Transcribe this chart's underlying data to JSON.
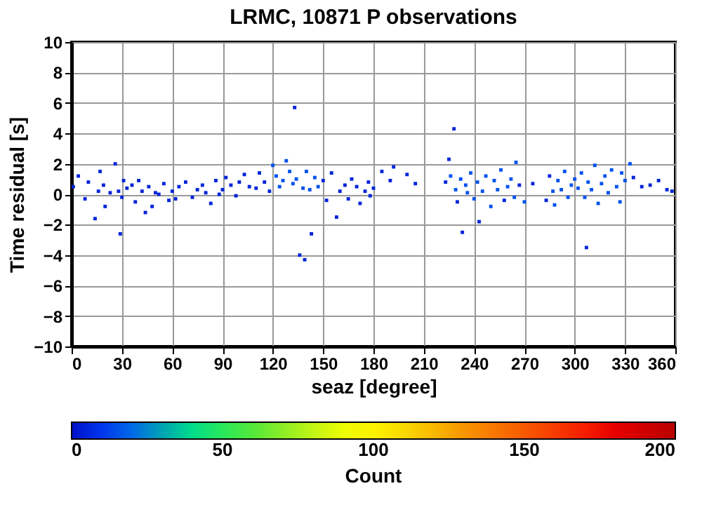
{
  "chart_data": {
    "type": "scatter",
    "title": "LRMC, 10871 P observations",
    "xlabel": "seaz [degree]",
    "ylabel": "Time residual [s]",
    "clabel": "Count",
    "clim": [
      0,
      200
    ],
    "cticks": [
      0,
      50,
      100,
      150,
      200
    ],
    "xlim": [
      0,
      360
    ],
    "ylim": [
      -10,
      10
    ],
    "xticks": [
      0,
      30,
      60,
      90,
      120,
      150,
      180,
      210,
      240,
      270,
      300,
      330,
      360
    ],
    "yticks": [
      -10,
      -8,
      -6,
      -4,
      -2,
      0,
      2,
      4,
      6,
      8,
      10
    ],
    "grid": true,
    "series": [
      {
        "x": [
          1,
          4,
          8,
          10,
          14,
          16,
          17,
          19,
          20,
          23,
          26,
          28,
          29,
          30,
          31,
          33,
          36,
          38,
          40,
          42,
          44,
          46,
          48,
          50,
          52,
          55,
          58,
          60,
          62,
          64,
          68,
          72,
          75,
          78,
          80,
          83,
          86,
          88,
          90,
          92,
          95,
          98,
          100,
          103,
          106,
          110,
          112,
          115,
          118,
          120,
          122,
          124,
          126,
          128,
          130,
          132,
          133,
          134,
          136,
          138,
          139,
          140,
          142,
          143,
          145,
          147,
          150,
          152,
          155,
          158,
          160,
          163,
          165,
          167,
          170,
          172,
          175,
          177,
          178,
          180,
          185,
          190,
          192,
          200,
          205,
          223,
          225,
          226,
          228,
          229,
          230,
          232,
          233,
          235,
          236,
          238,
          240,
          242,
          243,
          245,
          247,
          250,
          252,
          254,
          256,
          258,
          260,
          262,
          264,
          265,
          267,
          270,
          275,
          283,
          285,
          287,
          288,
          290,
          292,
          294,
          296,
          298,
          300,
          302,
          304,
          306,
          307,
          308,
          310,
          312,
          314,
          316,
          318,
          320,
          322,
          325,
          327,
          328,
          330,
          333,
          335,
          340,
          345,
          350,
          355,
          358
        ],
        "values": [
          0.5,
          1.2,
          -0.3,
          0.8,
          -1.6,
          0.2,
          1.5,
          0.6,
          -0.8,
          0.1,
          2.0,
          0.2,
          -2.6,
          -0.2,
          0.9,
          0.4,
          0.6,
          -0.5,
          0.9,
          0.2,
          -1.2,
          0.5,
          -0.8,
          0.1,
          0.0,
          0.7,
          -0.4,
          0.2,
          -0.3,
          0.5,
          0.8,
          -0.2,
          0.3,
          0.6,
          0.1,
          -0.6,
          0.9,
          0.0,
          0.3,
          1.1,
          0.6,
          -0.1,
          0.8,
          1.3,
          0.5,
          0.4,
          1.4,
          0.8,
          0.2,
          1.9,
          1.2,
          0.5,
          0.9,
          2.2,
          1.5,
          0.7,
          5.7,
          1.0,
          -4.0,
          0.4,
          -4.3,
          1.5,
          0.3,
          -2.6,
          1.1,
          0.5,
          0.9,
          -0.4,
          1.4,
          -1.5,
          0.2,
          0.6,
          -0.3,
          1.0,
          0.5,
          -0.6,
          0.2,
          0.8,
          -0.1,
          0.4,
          1.5,
          0.9,
          1.8,
          1.3,
          0.7,
          0.8,
          2.3,
          1.2,
          4.3,
          0.3,
          -0.5,
          1.0,
          -2.5,
          0.6,
          0.1,
          1.4,
          -0.3,
          0.8,
          -1.8,
          0.2,
          1.2,
          -0.8,
          0.9,
          0.3,
          1.6,
          -0.4,
          0.5,
          1.0,
          -0.2,
          2.1,
          0.6,
          -0.5,
          0.7,
          -0.4,
          1.2,
          0.2,
          -0.7,
          0.9,
          0.3,
          1.5,
          -0.2,
          0.6,
          1.0,
          0.4,
          1.4,
          -0.2,
          -3.5,
          0.8,
          0.3,
          1.9,
          -0.6,
          0.7,
          1.2,
          0.1,
          1.6,
          0.5,
          -0.5,
          1.4,
          0.9,
          2.0,
          1.1,
          0.5,
          0.6,
          0.9,
          0.3,
          0.2
        ],
        "cvalues": [
          5,
          5,
          5,
          5,
          5,
          5,
          5,
          5,
          5,
          5,
          5,
          5,
          5,
          5,
          5,
          5,
          5,
          5,
          5,
          5,
          5,
          5,
          5,
          5,
          5,
          5,
          5,
          5,
          5,
          5,
          5,
          5,
          5,
          5,
          5,
          5,
          5,
          5,
          5,
          5,
          5,
          5,
          5,
          5,
          5,
          5,
          5,
          5,
          5,
          15,
          15,
          15,
          15,
          15,
          15,
          15,
          5,
          15,
          5,
          15,
          5,
          15,
          15,
          5,
          15,
          15,
          5,
          5,
          5,
          5,
          5,
          5,
          5,
          5,
          5,
          5,
          5,
          5,
          5,
          5,
          5,
          5,
          5,
          5,
          5,
          5,
          5,
          15,
          5,
          15,
          5,
          15,
          5,
          15,
          15,
          15,
          15,
          15,
          5,
          15,
          15,
          15,
          15,
          15,
          15,
          5,
          15,
          15,
          15,
          15,
          5,
          15,
          5,
          5,
          5,
          15,
          15,
          15,
          15,
          15,
          15,
          15,
          15,
          15,
          15,
          15,
          5,
          15,
          15,
          15,
          15,
          15,
          15,
          15,
          15,
          15,
          15,
          15,
          15,
          15,
          5,
          5,
          5,
          5,
          5,
          5
        ]
      }
    ]
  }
}
